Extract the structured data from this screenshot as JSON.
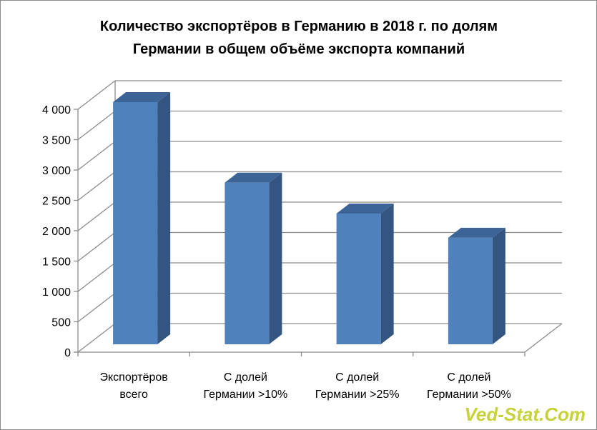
{
  "chart_data": {
    "type": "bar",
    "title_lines": [
      "Количество экспортёров в Германию в 2018 г. по долям",
      "Германии в общем объёме экспорта компаний"
    ],
    "categories": [
      [
        "Экспортёров",
        "всего"
      ],
      [
        "С долей",
        "Германии >10%"
      ],
      [
        "С долей",
        "Германии >25%"
      ],
      [
        "С  долей",
        "Германии >50%"
      ]
    ],
    "values": [
      4000,
      2670,
      2160,
      1760
    ],
    "y_ticks": [
      "0",
      "500",
      "1 000",
      "1 500",
      "2 000",
      "2 500",
      "3 000",
      "3 500",
      "4 000"
    ],
    "ylim": [
      0,
      4000
    ],
    "grid": true,
    "style": "3d-column",
    "colors": {
      "front": "#4f81bd",
      "side": "#34557f",
      "top": "#3d6496",
      "grid": "#8c8c8c"
    }
  },
  "watermark": "Ved-Stat.Com"
}
